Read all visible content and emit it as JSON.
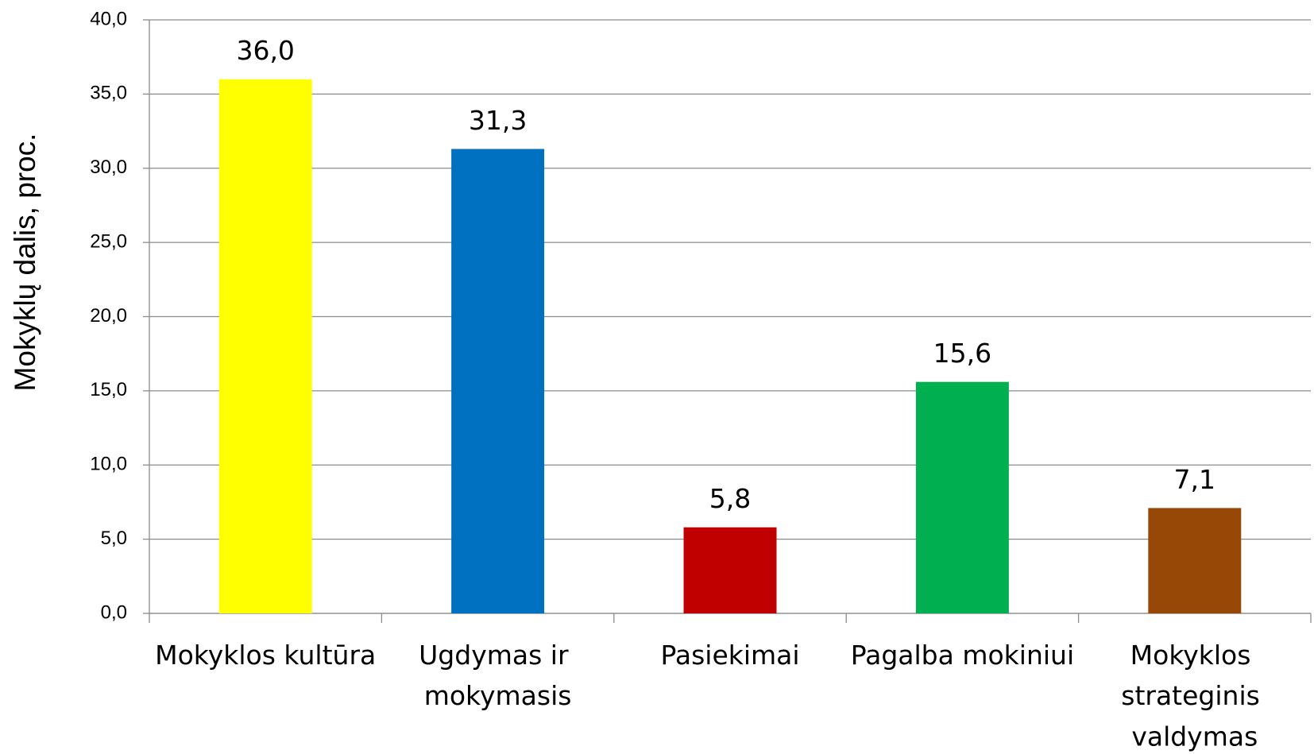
{
  "chart_data": {
    "type": "bar",
    "y_label": "Mokyklų dalis,  proc.",
    "categories": [
      "Mokyklos kultūra",
      "Ugdymas ir mokymasis",
      "Pasiekimai",
      "Pagalba mokiniui",
      "Mokyklos strateginis valdymas"
    ],
    "values": [
      36.0,
      31.3,
      5.8,
      15.6,
      7.1
    ],
    "value_labels": [
      "36,0",
      "31,3",
      "5,8",
      "15,6",
      "7,1"
    ],
    "colors": [
      "#ffff00",
      "#0070c0",
      "#c00000",
      "#00b050",
      "#974706"
    ],
    "ylim": [
      0,
      40
    ],
    "yticks": [
      {
        "value": 0,
        "label": "0,0"
      },
      {
        "value": 5,
        "label": "5,0"
      },
      {
        "value": 10,
        "label": "10,0"
      },
      {
        "value": 15,
        "label": "15,0"
      },
      {
        "value": 20,
        "label": "20,0"
      },
      {
        "value": 25,
        "label": "25,0"
      },
      {
        "value": 30,
        "label": "30,0"
      },
      {
        "value": 35,
        "label": "35,0"
      },
      {
        "value": 40,
        "label": "40,0"
      }
    ],
    "grid": true
  }
}
